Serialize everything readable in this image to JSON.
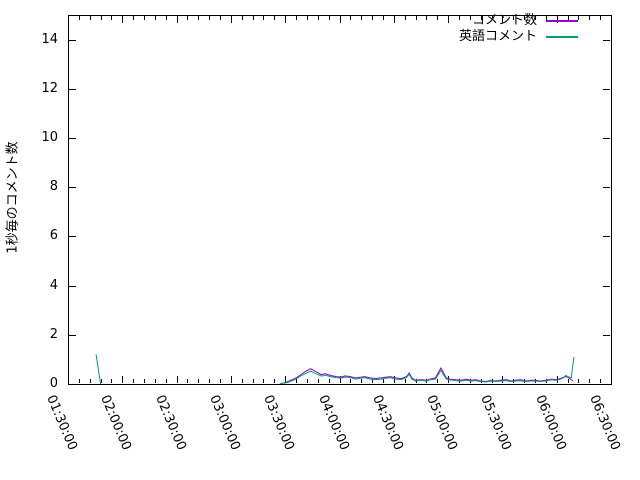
{
  "figure": {
    "background": "#ffffff",
    "border_color": "#000000",
    "text_color": "#000000"
  },
  "chart_data": {
    "type": "line",
    "title": "",
    "xlabel": "",
    "ylabel": "1秒毎のコメント数",
    "x_start": "01:30:00",
    "x_end": "06:30:00",
    "x_ticks": [
      "01:30:00",
      "02:00:00",
      "02:30:00",
      "03:00:00",
      "03:30:00",
      "04:00:00",
      "04:30:00",
      "05:00:00",
      "05:30:00",
      "06:00:00",
      "06:30:00"
    ],
    "x_minor_tick_seconds": 360,
    "y_ticks": [
      "0",
      "2",
      "4",
      "6",
      "8",
      "10",
      "12",
      "14"
    ],
    "ylim": [
      0,
      15
    ],
    "grid": false,
    "legend_position": "top-right-inside",
    "series": [
      {
        "name": "コメント数",
        "key": "comments",
        "color": "#9400d3",
        "segments": [
          [
            [
              "03:28:00",
              0.02
            ],
            [
              "03:31:00",
              0.08
            ],
            [
              "03:34:00",
              0.18
            ],
            [
              "03:36:00",
              0.25
            ],
            [
              "03:38:00",
              0.35
            ],
            [
              "03:41:00",
              0.5
            ],
            [
              "03:44:00",
              0.62
            ],
            [
              "03:47:00",
              0.5
            ],
            [
              "03:50:00",
              0.38
            ],
            [
              "03:52:00",
              0.42
            ],
            [
              "03:55:00",
              0.35
            ],
            [
              "03:58:00",
              0.3
            ],
            [
              "04:01:00",
              0.28
            ],
            [
              "04:03:00",
              0.33
            ],
            [
              "04:06:00",
              0.3
            ],
            [
              "04:09:00",
              0.25
            ],
            [
              "04:12:00",
              0.28
            ],
            [
              "04:14:00",
              0.3
            ],
            [
              "04:17:00",
              0.25
            ],
            [
              "04:20:00",
              0.22
            ],
            [
              "04:23:00",
              0.25
            ],
            [
              "04:26:00",
              0.28
            ],
            [
              "04:28:00",
              0.3
            ],
            [
              "04:31:00",
              0.25
            ],
            [
              "04:34:00",
              0.22
            ],
            [
              "04:37:00",
              0.3
            ],
            [
              "04:38:30",
              0.45
            ],
            [
              "04:40:00",
              0.25
            ],
            [
              "04:42:00",
              0.15
            ],
            [
              "04:45:00",
              0.18
            ],
            [
              "04:48:00",
              0.15
            ],
            [
              "04:50:00",
              0.2
            ],
            [
              "04:53:00",
              0.25
            ],
            [
              "04:56:00",
              0.65
            ],
            [
              "04:59:00",
              0.25
            ],
            [
              "05:01:00",
              0.2
            ],
            [
              "05:04:00",
              0.18
            ],
            [
              "05:07:00",
              0.15
            ],
            [
              "05:10:00",
              0.2
            ],
            [
              "05:13:00",
              0.15
            ],
            [
              "05:15:00",
              0.18
            ],
            [
              "05:18:00",
              0.12
            ],
            [
              "05:21:00",
              0.1
            ],
            [
              "05:24:00",
              0.15
            ],
            [
              "05:26:00",
              0.12
            ],
            [
              "05:29:00",
              0.15
            ],
            [
              "05:32:00",
              0.18
            ],
            [
              "05:35:00",
              0.12
            ],
            [
              "05:37:00",
              0.15
            ],
            [
              "05:40:00",
              0.17
            ],
            [
              "05:43:00",
              0.12
            ],
            [
              "05:46:00",
              0.15
            ],
            [
              "05:48:00",
              0.15
            ],
            [
              "05:51:00",
              0.12
            ],
            [
              "05:54:00",
              0.15
            ],
            [
              "05:57:00",
              0.2
            ],
            [
              "05:59:00",
              0.18
            ],
            [
              "06:01:00",
              0.2
            ],
            [
              "06:03:00",
              0.25
            ],
            [
              "06:05:00",
              0.3
            ],
            [
              "06:06:00",
              0.28
            ],
            [
              "06:08:00",
              0.18
            ],
            [
              "06:09:00",
              0.12
            ]
          ]
        ]
      },
      {
        "name": "英語コメント",
        "key": "english-comments",
        "color": "#009e73",
        "segments": [
          [
            [
              "01:45:30",
              1.2
            ],
            [
              "01:48:00",
              0.0
            ]
          ],
          [
            [
              "03:27:00",
              0.02
            ],
            [
              "03:31:00",
              0.05
            ],
            [
              "03:34:00",
              0.14
            ],
            [
              "03:36:00",
              0.2
            ],
            [
              "03:38:00",
              0.3
            ],
            [
              "03:41:00",
              0.42
            ],
            [
              "03:44:00",
              0.52
            ],
            [
              "03:47:00",
              0.42
            ],
            [
              "03:50:00",
              0.32
            ],
            [
              "03:52:00",
              0.36
            ],
            [
              "03:55:00",
              0.3
            ],
            [
              "03:58:00",
              0.26
            ],
            [
              "04:01:00",
              0.24
            ],
            [
              "04:03:00",
              0.28
            ],
            [
              "04:06:00",
              0.26
            ],
            [
              "04:09:00",
              0.2
            ],
            [
              "04:12:00",
              0.24
            ],
            [
              "04:14:00",
              0.26
            ],
            [
              "04:17:00",
              0.2
            ],
            [
              "04:20:00",
              0.18
            ],
            [
              "04:23:00",
              0.2
            ],
            [
              "04:26:00",
              0.24
            ],
            [
              "04:28:00",
              0.26
            ],
            [
              "04:31:00",
              0.2
            ],
            [
              "04:34:00",
              0.18
            ],
            [
              "04:37:00",
              0.26
            ],
            [
              "04:38:30",
              0.4
            ],
            [
              "04:40:00",
              0.2
            ],
            [
              "04:42:00",
              0.12
            ],
            [
              "04:45:00",
              0.15
            ],
            [
              "04:48:00",
              0.12
            ],
            [
              "04:50:00",
              0.17
            ],
            [
              "04:53:00",
              0.2
            ],
            [
              "04:56:00",
              0.55
            ],
            [
              "04:59:00",
              0.2
            ],
            [
              "05:01:00",
              0.17
            ],
            [
              "05:04:00",
              0.14
            ],
            [
              "05:07:00",
              0.12
            ],
            [
              "05:10:00",
              0.15
            ],
            [
              "05:13:00",
              0.12
            ],
            [
              "05:15:00",
              0.14
            ],
            [
              "05:18:00",
              0.1
            ],
            [
              "05:21:00",
              0.08
            ],
            [
              "05:24:00",
              0.12
            ],
            [
              "05:26:00",
              0.1
            ],
            [
              "05:29:00",
              0.12
            ],
            [
              "05:32:00",
              0.14
            ],
            [
              "05:35:00",
              0.1
            ],
            [
              "05:37:00",
              0.12
            ],
            [
              "05:40:00",
              0.13
            ],
            [
              "05:43:00",
              0.1
            ],
            [
              "05:46:00",
              0.12
            ],
            [
              "05:48:00",
              0.12
            ],
            [
              "05:51:00",
              0.1
            ],
            [
              "05:54:00",
              0.12
            ],
            [
              "05:57:00",
              0.17
            ],
            [
              "05:59:00",
              0.15
            ],
            [
              "06:01:00",
              0.17
            ],
            [
              "06:03:00",
              0.22
            ],
            [
              "06:05:00",
              0.35
            ],
            [
              "06:06:00",
              0.3
            ],
            [
              "06:08:00",
              0.25
            ],
            [
              "06:09:30",
              1.1
            ]
          ]
        ]
      }
    ]
  }
}
